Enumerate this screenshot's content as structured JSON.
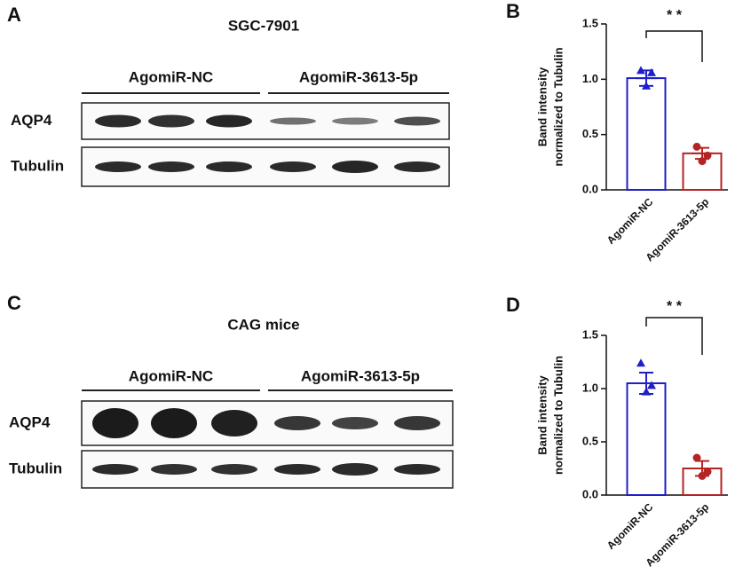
{
  "panels": [
    {
      "label": "A",
      "title": "SGC-7901",
      "groups": [
        "AgomiR-NC",
        "AgomiR-3613-5p"
      ],
      "rows": [
        "AQP4",
        "Tubulin"
      ]
    },
    {
      "label": "C",
      "title": "CAG mice",
      "groups": [
        "AgomiR-NC",
        "AgomiR-3613-5p"
      ],
      "rows": [
        "AQP4",
        "Tubulin"
      ]
    }
  ],
  "chart_data": [
    {
      "type": "bar",
      "label": "B",
      "ylabel": [
        "Band intensity",
        "normalized to Tubulin"
      ],
      "categories": [
        "AgomiR-NC",
        "AgomiR-3613-5p"
      ],
      "values": [
        1.01,
        0.33
      ],
      "errors": [
        0.07,
        0.05
      ],
      "points": [
        [
          1.08,
          1.06,
          0.94
        ],
        [
          0.39,
          0.31,
          0.26
        ]
      ],
      "markers": [
        "triangle",
        "circle"
      ],
      "colors": [
        "#1f1fc8",
        "#b52424"
      ],
      "ylim": [
        0,
        1.5
      ],
      "yticks": [
        {
          "value": 0,
          "label": "0.0"
        },
        {
          "value": 0.5,
          "label": "0.5"
        },
        {
          "value": 1,
          "label": "1.0"
        },
        {
          "value": 1.5,
          "label": "1.5"
        }
      ],
      "annotation": "* *"
    },
    {
      "type": "bar",
      "label": "D",
      "ylabel": [
        "Band intensity",
        "normalized to Tubulin"
      ],
      "categories": [
        "AgomiR-NC",
        "AgomiR-3613-5p"
      ],
      "values": [
        1.05,
        0.25
      ],
      "errors": [
        0.1,
        0.07
      ],
      "points": [
        [
          1.24,
          1.03,
          0.97
        ],
        [
          0.35,
          0.22,
          0.18
        ]
      ],
      "markers": [
        "triangle",
        "circle"
      ],
      "colors": [
        "#1f1fc8",
        "#b52424"
      ],
      "ylim": [
        0,
        1.5
      ],
      "yticks": [
        {
          "value": 0,
          "label": "0.0"
        },
        {
          "value": 0.5,
          "label": "0.5"
        },
        {
          "value": 1,
          "label": "1.0"
        },
        {
          "value": 1.5,
          "label": "1.5"
        }
      ],
      "annotation": "* *"
    }
  ]
}
